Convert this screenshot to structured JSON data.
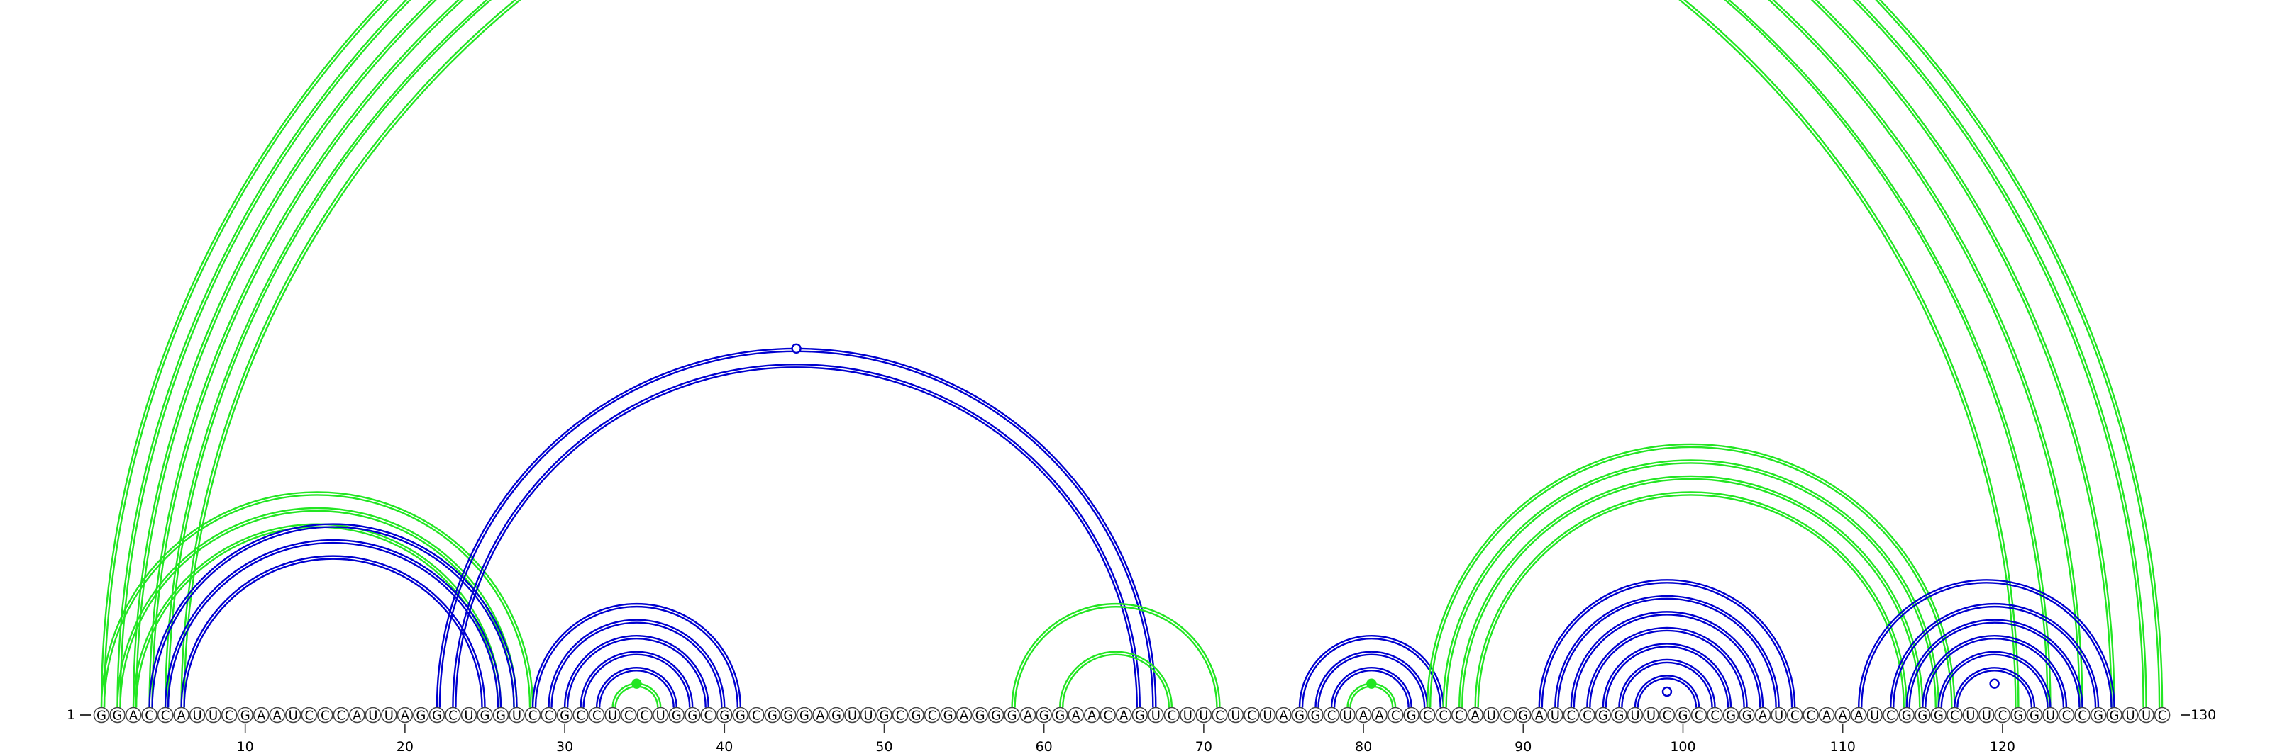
{
  "sequence": "GGACCAUUCGAAUCCCAUUAGGCUGGUCCGCCUCCUGGCGGCGGGAGUUGCGCGAGGGAGGAACAGUCUUCUCUAGGCUAACGCCCAUCGAUCCGGUUCGCCGGAUCCAAAUCGGGCUUCGGUCCGGUUC",
  "start_label": "1",
  "end_label": "130",
  "ticks": [
    "10",
    "20",
    "30",
    "40",
    "50",
    "60",
    "70",
    "80",
    "90",
    "100",
    "110",
    "120"
  ],
  "colors": {
    "green": "#22e622",
    "blue": "#0000d0",
    "circle_stroke": "#444444"
  },
  "diagram_data": {
    "type": "arc_diagram",
    "arc_groups": [
      {
        "name": "long-range",
        "color": "green",
        "shape": "double",
        "pairs": [
          [
            1,
            130
          ],
          [
            2,
            129
          ],
          [
            3,
            127
          ],
          [
            4,
            125
          ],
          [
            5,
            123
          ],
          [
            6,
            121
          ]
        ],
        "marker": {
          "type": "open",
          "pair": [
            1,
            130
          ]
        }
      },
      {
        "name": "outer-left",
        "color": "green",
        "shape": "double",
        "pairs": [
          [
            1,
            28
          ],
          [
            2,
            27
          ],
          [
            3,
            26
          ]
        ]
      },
      {
        "name": "left-stem",
        "color": "blue",
        "shape": "double",
        "pairs": [
          [
            4,
            27
          ],
          [
            5,
            26
          ],
          [
            6,
            25
          ]
        ]
      },
      {
        "name": "pseudoknot",
        "color": "blue",
        "shape": "double",
        "pairs": [
          [
            22,
            67
          ],
          [
            23,
            66
          ]
        ],
        "marker": {
          "type": "open",
          "pair": [
            22,
            67
          ]
        }
      },
      {
        "name": "hairpin-33",
        "color": "blue",
        "shape": "double",
        "pairs": [
          [
            28,
            41
          ],
          [
            29,
            40
          ],
          [
            30,
            39
          ],
          [
            31,
            38
          ],
          [
            32,
            37
          ]
        ]
      },
      {
        "name": "hairpin-33-core",
        "color": "green",
        "shape": "double",
        "pairs": [
          [
            33,
            36
          ]
        ],
        "marker": {
          "type": "filled",
          "pair": [
            33,
            36
          ]
        }
      },
      {
        "name": "loop-64",
        "color": "green",
        "shape": "double",
        "pairs": [
          [
            58,
            71
          ],
          [
            61,
            68
          ]
        ]
      },
      {
        "name": "hairpin-80",
        "color": "blue",
        "shape": "double",
        "pairs": [
          [
            76,
            85
          ],
          [
            77,
            84
          ],
          [
            78,
            83
          ]
        ]
      },
      {
        "name": "hairpin-80-core",
        "color": "green",
        "shape": "double",
        "pairs": [
          [
            79,
            82
          ]
        ],
        "marker": {
          "type": "filled",
          "pair": [
            79,
            82
          ]
        }
      },
      {
        "name": "outer-right",
        "color": "green",
        "shape": "double",
        "pairs": [
          [
            84,
            117
          ],
          [
            85,
            116
          ],
          [
            86,
            115
          ],
          [
            87,
            114
          ]
        ]
      },
      {
        "name": "hairpin-99",
        "color": "blue",
        "shape": "double",
        "pairs": [
          [
            91,
            107
          ],
          [
            92,
            106
          ],
          [
            93,
            105
          ],
          [
            94,
            104
          ],
          [
            95,
            103
          ],
          [
            96,
            102
          ],
          [
            97,
            101
          ]
        ],
        "marker": {
          "type": "open",
          "pair": [
            98,
            100
          ]
        }
      },
      {
        "name": "hairpin-119",
        "color": "blue",
        "shape": "double",
        "pairs": [
          [
            111,
            127
          ],
          [
            113,
            126
          ],
          [
            114,
            125
          ],
          [
            115,
            124
          ],
          [
            116,
            123
          ],
          [
            117,
            122
          ]
        ],
        "marker": {
          "type": "open",
          "pair": [
            118,
            121
          ]
        }
      }
    ]
  }
}
